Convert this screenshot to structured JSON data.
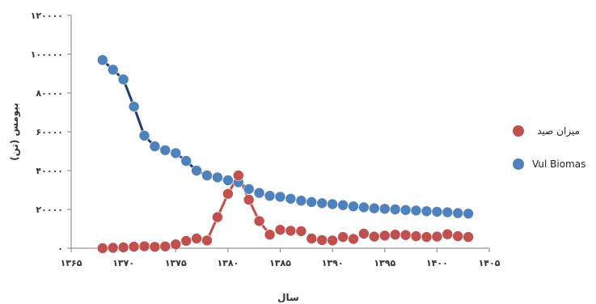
{
  "chart_data": {
    "type": "line",
    "title": "",
    "xlabel": "سال",
    "ylabel": "بیومس (تن)",
    "xlim": [
      1365,
      1405
    ],
    "ylim": [
      0,
      120000
    ],
    "x_ticks": [
      1365,
      1370,
      1375,
      1380,
      1385,
      1390,
      1395,
      1400,
      1405
    ],
    "x_tick_labels": [
      "۱۳۶۵",
      "۱۳۷۰",
      "۱۳۷۵",
      "۱۳۸۰",
      "۱۳۸۵",
      "۱۳۹۰",
      "۱۳۹۵",
      "۱۴۰۰",
      "۱۴۰۵"
    ],
    "y_ticks": [
      0,
      20000,
      40000,
      60000,
      80000,
      100000,
      120000
    ],
    "y_tick_labels": [
      "۰",
      "۲۰۰۰۰",
      "۴۰۰۰۰",
      "۶۰۰۰۰",
      "۸۰۰۰۰",
      "۱۰۰۰۰۰",
      "۱۲۰۰۰۰"
    ],
    "grid": false,
    "legend_position": "right",
    "x": [
      1368,
      1369,
      1370,
      1371,
      1372,
      1373,
      1374,
      1375,
      1376,
      1377,
      1378,
      1379,
      1380,
      1381,
      1382,
      1383,
      1384,
      1385,
      1386,
      1387,
      1388,
      1389,
      1390,
      1391,
      1392,
      1393,
      1394,
      1395,
      1396,
      1397,
      1398,
      1399,
      1400,
      1401,
      1402,
      1403
    ],
    "series": [
      {
        "name": "Vul Biomas",
        "color": "#4f81bd",
        "line_color": "#1f3d73",
        "connected": true,
        "values": [
          97000,
          92000,
          87000,
          73000,
          58000,
          52500,
          50500,
          49000,
          45000,
          40000,
          37500,
          36500,
          35000,
          34000,
          30500,
          28500,
          27000,
          26500,
          25500,
          24500,
          23800,
          23200,
          22700,
          22200,
          21600,
          21100,
          20600,
          20300,
          20000,
          19700,
          19400,
          19100,
          18800,
          18500,
          18100,
          17800
        ]
      },
      {
        "name": "میزان صید",
        "color": "#c0504d",
        "line_color": "#c0504d",
        "connected": false,
        "connected_range": [
          1377,
          1384
        ],
        "values": [
          0,
          200,
          400,
          800,
          1000,
          700,
          900,
          2000,
          3800,
          5000,
          4000,
          16000,
          28000,
          37500,
          25000,
          14000,
          7000,
          9500,
          9000,
          8800,
          5000,
          4200,
          4000,
          5800,
          4800,
          7500,
          6000,
          6500,
          7000,
          6800,
          6200,
          5800,
          6000,
          7200,
          6200,
          5800
        ]
      }
    ]
  }
}
